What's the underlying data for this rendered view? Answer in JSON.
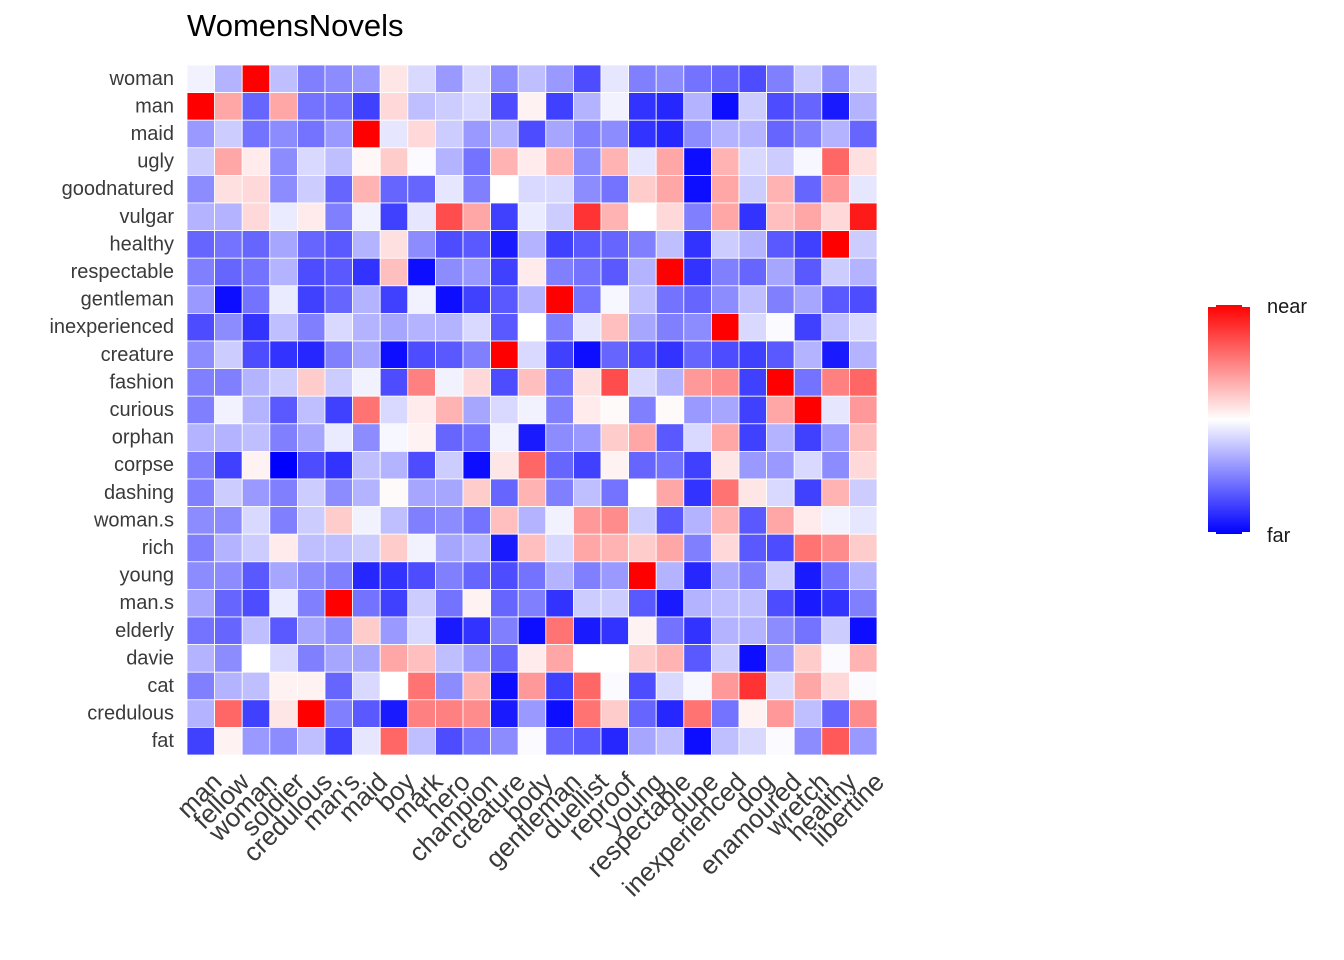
{
  "chart_data": {
    "type": "heatmap",
    "title": "WomensNovels",
    "rows": [
      "woman",
      "man",
      "maid",
      "ugly",
      "goodnatured",
      "vulgar",
      "healthy",
      "respectable",
      "gentleman",
      "inexperienced",
      "creature",
      "fashion",
      "curious",
      "orphan",
      "corpse",
      "dashing",
      "woman.s",
      "rich",
      "young",
      "man.s",
      "elderly",
      "davie",
      "cat",
      "credulous",
      "fat"
    ],
    "columns": [
      "man",
      "fellow",
      "woman",
      "soldier",
      "credulous",
      "man's",
      "maid",
      "boy",
      "mark",
      "hero",
      "champion",
      "creature",
      "body",
      "gentleman",
      "duellist",
      "reproof",
      "young",
      "respectable",
      "dupe",
      "inexperienced",
      "dog",
      "enamoured",
      "wretch",
      "healthy",
      "libertine"
    ],
    "values": [
      [
        -0.05,
        -0.3,
        1.0,
        -0.25,
        -0.5,
        -0.45,
        -0.4,
        0.1,
        -0.15,
        -0.4,
        -0.15,
        -0.45,
        -0.25,
        -0.4,
        -0.7,
        -0.1,
        -0.5,
        -0.45,
        -0.55,
        -0.6,
        -0.7,
        -0.5,
        -0.2,
        -0.45,
        -0.15
      ],
      [
        1.0,
        0.35,
        -0.6,
        0.35,
        -0.55,
        -0.55,
        -0.75,
        0.15,
        -0.25,
        -0.2,
        -0.15,
        -0.7,
        0.05,
        -0.75,
        -0.3,
        -0.05,
        -0.8,
        -0.85,
        -0.3,
        -0.95,
        -0.2,
        -0.7,
        -0.6,
        -0.9,
        -0.3
      ],
      [
        -0.4,
        -0.2,
        -0.55,
        -0.45,
        -0.55,
        -0.4,
        1.0,
        -0.1,
        0.15,
        -0.2,
        -0.4,
        -0.3,
        -0.7,
        -0.35,
        -0.5,
        -0.45,
        -0.8,
        -0.85,
        -0.45,
        -0.3,
        -0.3,
        -0.6,
        -0.5,
        -0.3,
        -0.6
      ],
      [
        -0.2,
        0.35,
        0.08,
        -0.45,
        -0.15,
        -0.25,
        0.03,
        0.2,
        -0.02,
        -0.3,
        -0.55,
        0.3,
        0.08,
        0.3,
        -0.45,
        0.3,
        -0.1,
        0.35,
        -0.95,
        0.3,
        -0.15,
        -0.2,
        -0.03,
        0.6,
        0.12
      ],
      [
        -0.45,
        0.12,
        0.15,
        -0.45,
        -0.2,
        -0.6,
        0.3,
        -0.6,
        -0.6,
        -0.1,
        -0.5,
        0.0,
        -0.15,
        -0.15,
        -0.45,
        -0.55,
        0.2,
        0.35,
        -0.95,
        0.35,
        -0.2,
        0.3,
        -0.6,
        0.4,
        -0.1
      ],
      [
        -0.3,
        -0.3,
        0.15,
        -0.08,
        0.08,
        -0.5,
        -0.05,
        -0.75,
        -0.1,
        0.7,
        0.35,
        -0.75,
        -0.08,
        -0.2,
        0.8,
        0.3,
        0.0,
        0.15,
        -0.5,
        0.35,
        -0.8,
        0.25,
        0.35,
        0.15,
        0.9
      ],
      [
        -0.6,
        -0.55,
        -0.6,
        -0.35,
        -0.6,
        -0.65,
        -0.3,
        0.12,
        -0.45,
        -0.7,
        -0.65,
        -0.9,
        -0.3,
        -0.75,
        -0.65,
        -0.6,
        -0.5,
        -0.25,
        -0.8,
        -0.2,
        -0.3,
        -0.65,
        -0.75,
        1.0,
        -0.2
      ],
      [
        -0.5,
        -0.6,
        -0.55,
        -0.3,
        -0.7,
        -0.65,
        -0.8,
        0.25,
        -0.95,
        -0.45,
        -0.4,
        -0.75,
        0.08,
        -0.5,
        -0.55,
        -0.65,
        -0.3,
        1.0,
        -0.8,
        -0.5,
        -0.6,
        -0.35,
        -0.65,
        -0.2,
        -0.3
      ],
      [
        -0.4,
        -0.95,
        -0.55,
        -0.08,
        -0.75,
        -0.6,
        -0.3,
        -0.75,
        -0.05,
        -0.95,
        -0.75,
        -0.65,
        -0.3,
        1.0,
        -0.55,
        -0.03,
        -0.25,
        -0.55,
        -0.6,
        -0.45,
        -0.25,
        -0.5,
        -0.35,
        -0.65,
        -0.7
      ],
      [
        -0.7,
        -0.45,
        -0.8,
        -0.25,
        -0.5,
        -0.15,
        -0.3,
        -0.35,
        -0.3,
        -0.3,
        -0.15,
        -0.65,
        0.0,
        -0.5,
        -0.1,
        0.25,
        -0.35,
        -0.5,
        -0.45,
        1.0,
        -0.15,
        -0.02,
        -0.75,
        -0.25,
        -0.15
      ],
      [
        -0.45,
        -0.2,
        -0.7,
        -0.8,
        -0.85,
        -0.5,
        -0.35,
        -0.95,
        -0.7,
        -0.65,
        -0.5,
        1.0,
        -0.15,
        -0.75,
        -0.95,
        -0.6,
        -0.7,
        -0.8,
        -0.6,
        -0.7,
        -0.75,
        -0.65,
        -0.3,
        -0.9,
        -0.3
      ],
      [
        -0.5,
        -0.5,
        -0.3,
        -0.2,
        0.2,
        -0.2,
        -0.05,
        -0.7,
        0.5,
        -0.05,
        0.15,
        -0.7,
        0.25,
        -0.55,
        0.12,
        0.7,
        -0.15,
        -0.3,
        0.4,
        0.45,
        -0.75,
        1.0,
        -0.55,
        0.5,
        0.6
      ],
      [
        -0.5,
        -0.05,
        -0.3,
        -0.65,
        -0.25,
        -0.75,
        0.55,
        -0.15,
        0.08,
        0.3,
        -0.35,
        -0.15,
        -0.05,
        -0.5,
        0.08,
        0.02,
        -0.5,
        0.02,
        -0.4,
        -0.35,
        -0.75,
        0.35,
        1.0,
        -0.1,
        0.4
      ],
      [
        -0.3,
        -0.3,
        -0.25,
        -0.5,
        -0.35,
        -0.08,
        -0.45,
        -0.03,
        0.05,
        -0.6,
        -0.55,
        -0.05,
        -0.9,
        -0.45,
        -0.4,
        0.2,
        0.35,
        -0.65,
        -0.15,
        0.35,
        -0.75,
        -0.3,
        -0.75,
        -0.4,
        0.25
      ],
      [
        -0.5,
        -0.75,
        0.05,
        -1.0,
        -0.7,
        -0.8,
        -0.25,
        -0.3,
        -0.7,
        -0.2,
        -0.95,
        0.1,
        0.6,
        -0.6,
        -0.75,
        0.05,
        -0.6,
        -0.55,
        -0.75,
        0.1,
        -0.4,
        -0.4,
        -0.15,
        -0.45,
        0.15
      ],
      [
        -0.5,
        -0.2,
        -0.4,
        -0.5,
        -0.2,
        -0.45,
        -0.3,
        0.02,
        -0.35,
        -0.35,
        0.2,
        -0.6,
        0.3,
        -0.5,
        -0.25,
        -0.55,
        0.0,
        0.35,
        -0.8,
        0.55,
        0.1,
        -0.15,
        -0.75,
        0.3,
        -0.2
      ],
      [
        -0.45,
        -0.45,
        -0.15,
        -0.5,
        -0.2,
        0.2,
        -0.05,
        -0.25,
        -0.5,
        -0.45,
        -0.55,
        0.25,
        -0.3,
        -0.05,
        0.4,
        0.45,
        -0.2,
        -0.65,
        -0.3,
        0.3,
        -0.65,
        0.35,
        0.08,
        -0.05,
        -0.1
      ],
      [
        -0.5,
        -0.3,
        -0.2,
        0.08,
        -0.25,
        -0.25,
        -0.2,
        0.2,
        -0.05,
        -0.35,
        -0.3,
        -0.9,
        0.25,
        -0.15,
        0.35,
        0.3,
        0.2,
        0.35,
        -0.5,
        0.15,
        -0.65,
        -0.7,
        0.55,
        0.45,
        0.2
      ],
      [
        -0.45,
        -0.45,
        -0.65,
        -0.35,
        -0.45,
        -0.5,
        -0.85,
        -0.8,
        -0.7,
        -0.5,
        -0.6,
        -0.7,
        -0.55,
        -0.3,
        -0.5,
        -0.4,
        1.0,
        -0.3,
        -0.85,
        -0.35,
        -0.5,
        -0.2,
        -0.9,
        -0.55,
        -0.3
      ],
      [
        -0.35,
        -0.6,
        -0.7,
        -0.08,
        -0.5,
        1.0,
        -0.55,
        -0.75,
        -0.2,
        -0.55,
        0.05,
        -0.6,
        -0.5,
        -0.8,
        -0.2,
        -0.2,
        -0.65,
        -0.9,
        -0.3,
        -0.25,
        -0.25,
        -0.7,
        -0.9,
        -0.8,
        -0.5
      ],
      [
        -0.55,
        -0.6,
        -0.25,
        -0.65,
        -0.35,
        -0.45,
        0.2,
        -0.4,
        -0.15,
        -0.9,
        -0.8,
        -0.5,
        -0.95,
        0.55,
        -0.9,
        -0.8,
        0.05,
        -0.55,
        -0.8,
        -0.3,
        -0.3,
        -0.45,
        -0.55,
        -0.2,
        -0.95
      ],
      [
        -0.3,
        -0.45,
        0.0,
        -0.15,
        -0.5,
        -0.35,
        -0.35,
        0.35,
        0.25,
        -0.25,
        -0.4,
        -0.6,
        0.08,
        0.35,
        0.0,
        0.0,
        0.2,
        0.3,
        -0.65,
        -0.2,
        -0.95,
        -0.4,
        0.2,
        -0.02,
        0.3
      ],
      [
        -0.5,
        -0.3,
        -0.25,
        0.05,
        0.05,
        -0.6,
        -0.15,
        0.0,
        0.55,
        -0.45,
        0.3,
        -0.95,
        0.4,
        -0.75,
        0.6,
        -0.02,
        -0.7,
        -0.15,
        -0.03,
        0.4,
        0.8,
        -0.15,
        0.35,
        0.15,
        -0.02
      ],
      [
        -0.3,
        0.6,
        -0.75,
        0.1,
        1.0,
        -0.5,
        -0.65,
        -0.9,
        0.5,
        0.5,
        0.45,
        -0.9,
        -0.4,
        -0.95,
        0.55,
        0.2,
        -0.6,
        -0.85,
        0.55,
        -0.55,
        0.05,
        0.4,
        -0.25,
        -0.6,
        0.45
      ],
      [
        -0.75,
        0.05,
        -0.4,
        -0.45,
        -0.25,
        -0.75,
        -0.1,
        0.6,
        -0.25,
        -0.7,
        -0.55,
        -0.45,
        -0.02,
        -0.6,
        -0.65,
        -0.85,
        -0.35,
        -0.25,
        -0.95,
        -0.25,
        -0.15,
        -0.02,
        -0.45,
        0.65,
        -0.4
      ]
    ],
    "color_low": "#0000ff",
    "color_mid": "#ffffff",
    "color_high": "#ff0000",
    "legend": {
      "position": "right",
      "high_label": "near",
      "low_label": "far"
    }
  }
}
